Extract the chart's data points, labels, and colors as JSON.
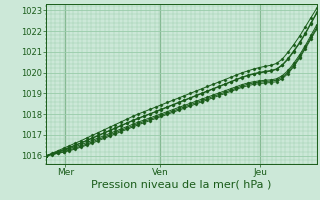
{
  "bg_color": "#cce8d8",
  "grid_color": "#99ccaa",
  "line_color": "#1a5c1a",
  "xlabel": "Pression niveau de la mer( hPa )",
  "xlabel_fontsize": 8,
  "ytick_fontsize": 6,
  "xtick_fontsize": 6.5,
  "yticks": [
    1016,
    1017,
    1018,
    1019,
    1020,
    1021,
    1022,
    1023
  ],
  "xtick_labels": [
    "Mer",
    "Ven",
    "Jeu"
  ],
  "xtick_positions": [
    0.07,
    0.42,
    0.79
  ],
  "vline_positions": [
    0.07,
    0.42,
    0.79
  ],
  "ylim": [
    1015.6,
    1023.3
  ],
  "xlim": [
    0.0,
    1.0
  ],
  "n_points": 48,
  "series": [
    [
      1016.0,
      1016.08,
      1016.16,
      1016.25,
      1016.34,
      1016.43,
      1016.53,
      1016.63,
      1016.74,
      1016.85,
      1016.96,
      1017.07,
      1017.18,
      1017.29,
      1017.4,
      1017.51,
      1017.62,
      1017.72,
      1017.82,
      1017.92,
      1018.02,
      1018.12,
      1018.22,
      1018.32,
      1018.42,
      1018.52,
      1018.62,
      1018.72,
      1018.82,
      1018.92,
      1019.02,
      1019.12,
      1019.22,
      1019.32,
      1019.42,
      1019.5,
      1019.56,
      1019.6,
      1019.63,
      1019.65,
      1019.7,
      1019.85,
      1020.1,
      1020.45,
      1020.85,
      1021.3,
      1021.8,
      1022.3
    ],
    [
      1016.0,
      1016.1,
      1016.2,
      1016.3,
      1016.4,
      1016.51,
      1016.62,
      1016.74,
      1016.86,
      1016.98,
      1017.1,
      1017.22,
      1017.34,
      1017.46,
      1017.58,
      1017.7,
      1017.81,
      1017.92,
      1018.02,
      1018.13,
      1018.24,
      1018.35,
      1018.46,
      1018.57,
      1018.68,
      1018.79,
      1018.9,
      1019.01,
      1019.12,
      1019.23,
      1019.34,
      1019.45,
      1019.56,
      1019.67,
      1019.78,
      1019.87,
      1019.95,
      1020.01,
      1020.06,
      1020.1,
      1020.18,
      1020.38,
      1020.68,
      1021.05,
      1021.45,
      1021.9,
      1022.4,
      1022.9
    ],
    [
      1016.0,
      1016.12,
      1016.24,
      1016.36,
      1016.48,
      1016.6,
      1016.72,
      1016.85,
      1016.98,
      1017.11,
      1017.24,
      1017.37,
      1017.5,
      1017.63,
      1017.76,
      1017.89,
      1018.01,
      1018.12,
      1018.23,
      1018.34,
      1018.45,
      1018.56,
      1018.67,
      1018.78,
      1018.89,
      1019.0,
      1019.11,
      1019.22,
      1019.33,
      1019.44,
      1019.55,
      1019.66,
      1019.77,
      1019.88,
      1019.99,
      1020.08,
      1020.17,
      1020.24,
      1020.3,
      1020.35,
      1020.44,
      1020.65,
      1020.98,
      1021.35,
      1021.75,
      1022.2,
      1022.65,
      1023.1
    ],
    [
      1016.0,
      1016.06,
      1016.13,
      1016.2,
      1016.28,
      1016.37,
      1016.46,
      1016.56,
      1016.67,
      1016.78,
      1016.89,
      1017.0,
      1017.11,
      1017.22,
      1017.33,
      1017.44,
      1017.55,
      1017.65,
      1017.75,
      1017.85,
      1017.95,
      1018.05,
      1018.15,
      1018.25,
      1018.35,
      1018.45,
      1018.55,
      1018.65,
      1018.75,
      1018.85,
      1018.95,
      1019.05,
      1019.15,
      1019.25,
      1019.35,
      1019.44,
      1019.5,
      1019.54,
      1019.57,
      1019.59,
      1019.63,
      1019.78,
      1020.02,
      1020.36,
      1020.76,
      1021.22,
      1021.7,
      1022.18
    ],
    [
      1016.0,
      1016.05,
      1016.11,
      1016.17,
      1016.24,
      1016.32,
      1016.41,
      1016.51,
      1016.61,
      1016.72,
      1016.83,
      1016.94,
      1017.05,
      1017.16,
      1017.27,
      1017.38,
      1017.49,
      1017.59,
      1017.69,
      1017.79,
      1017.89,
      1017.99,
      1018.09,
      1018.19,
      1018.29,
      1018.39,
      1018.49,
      1018.59,
      1018.69,
      1018.79,
      1018.89,
      1018.99,
      1019.09,
      1019.19,
      1019.29,
      1019.37,
      1019.43,
      1019.47,
      1019.5,
      1019.52,
      1019.56,
      1019.71,
      1019.95,
      1020.29,
      1020.69,
      1021.15,
      1021.63,
      1022.1
    ],
    [
      1016.0,
      1016.09,
      1016.18,
      1016.28,
      1016.38,
      1016.49,
      1016.6,
      1016.72,
      1016.84,
      1016.96,
      1017.08,
      1017.2,
      1017.32,
      1017.44,
      1017.56,
      1017.68,
      1017.79,
      1017.9,
      1018.0,
      1018.11,
      1018.22,
      1018.33,
      1018.44,
      1018.55,
      1018.66,
      1018.77,
      1018.88,
      1018.99,
      1019.1,
      1019.21,
      1019.32,
      1019.43,
      1019.54,
      1019.65,
      1019.76,
      1019.85,
      1019.92,
      1019.98,
      1020.03,
      1020.07,
      1020.15,
      1020.35,
      1020.64,
      1021.01,
      1021.41,
      1021.86,
      1022.36,
      1022.86
    ]
  ]
}
